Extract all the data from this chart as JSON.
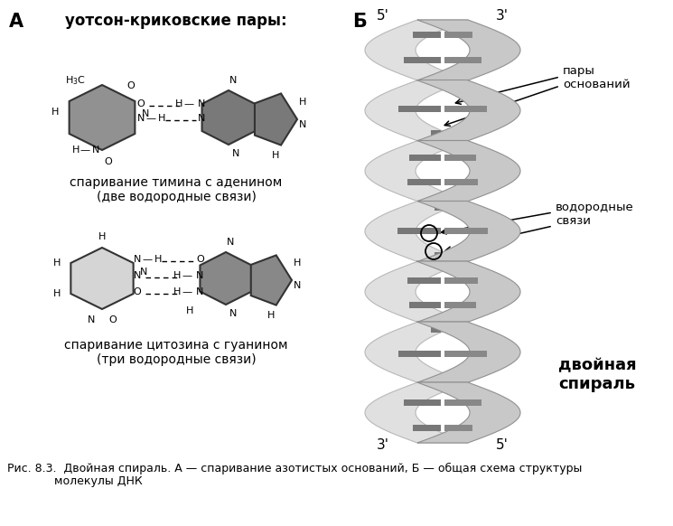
{
  "title_A": "А",
  "title_B": "Б",
  "header_text": "уотсон-криковские пары:",
  "pair1_label": "спаривание тимина с аденином\n(две водородные связи)",
  "pair2_label": "спаривание цитозина с гуанином\n(три водородные связи)",
  "label_pairs": "пары\nоснований",
  "label_hbonds": "водородные\nсвязи",
  "label_double_helix": "двойная\nспираль",
  "label_5prime_top_left": "5'",
  "label_3prime_top_right": "3'",
  "label_3prime_bot_left": "3'",
  "label_5prime_bot_right": "5'",
  "caption_line1": "Рис. 8.3.  Двойная спираль. А — спаривание азотистых оснований, Б — общая схема структуры",
  "caption_line2": "             молекулы ДНК",
  "bg_color": "#ffffff",
  "text_color": "#000000",
  "mol_dark": "#888888",
  "mol_light": "#d5d5d5",
  "helix_ribbon_light": "#d0d0d0",
  "helix_ribbon_dark": "#888888",
  "helix_base_dark": "#666666",
  "helix_base_light": "#aaaaaa"
}
